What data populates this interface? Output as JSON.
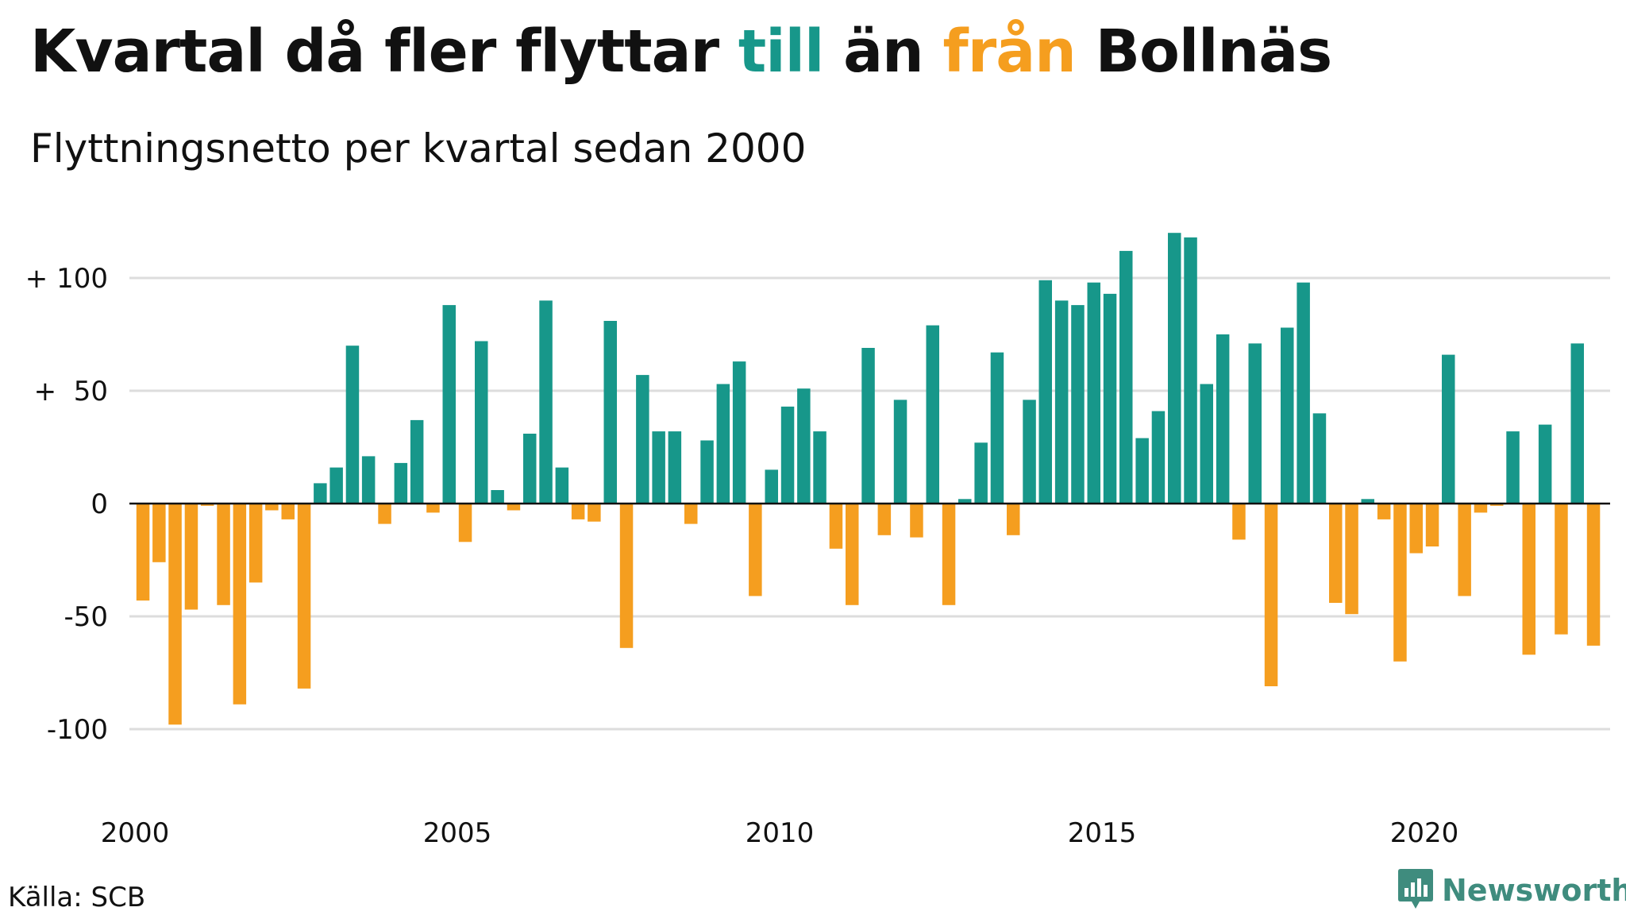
{
  "header": {
    "title_part1": "Kvartal då fler flyttar ",
    "title_till": "till",
    "title_part2": " än ",
    "title_fran": "från",
    "title_part3": " Bollnäs",
    "subtitle": "Flyttningsnetto per kvartal sedan 2000"
  },
  "footer": {
    "source": "Källa: SCB",
    "logo_text": "Newsworthy",
    "logo_icon": "newsworthy-logo-icon"
  },
  "colors": {
    "positive": "#17978a",
    "negative": "#f59e1f",
    "grid": "#dddddd",
    "baseline": "#111111",
    "logo": "#3f8c7e"
  },
  "chart_data": {
    "type": "bar",
    "title": "Kvartal då fler flyttar till än från Bollnäs",
    "subtitle": "Flyttningsnetto per kvartal sedan 2000",
    "start_year": 2000,
    "quarters_per_year": 4,
    "ylim": [
      -123,
      123
    ],
    "yticks": [
      {
        "value": 100,
        "label": "+ 100"
      },
      {
        "value": 50,
        "label": "+  50"
      },
      {
        "value": 0,
        "label": "0"
      },
      {
        "value": -50,
        "label": "-50"
      },
      {
        "value": -100,
        "label": "-100"
      }
    ],
    "xticks": [
      {
        "year": 2000,
        "label": "2000"
      },
      {
        "year": 2005,
        "label": "2005"
      },
      {
        "year": 2010,
        "label": "2010"
      },
      {
        "year": 2015,
        "label": "2015"
      },
      {
        "year": 2020,
        "label": "2020"
      }
    ],
    "grid": true,
    "values": [
      -43,
      -26,
      -98,
      -47,
      -1,
      -45,
      -89,
      -35,
      -3,
      -7,
      -82,
      9,
      16,
      70,
      21,
      -9,
      18,
      37,
      -4,
      88,
      -17,
      72,
      6,
      -3,
      31,
      90,
      16,
      -7,
      -8,
      81,
      -64,
      57,
      32,
      32,
      -9,
      28,
      53,
      63,
      -41,
      15,
      43,
      51,
      32,
      -20,
      -45,
      69,
      -14,
      46,
      -15,
      79,
      -45,
      2,
      27,
      67,
      -14,
      46,
      99,
      90,
      88,
      98,
      93,
      112,
      29,
      41,
      120,
      118,
      53,
      75,
      -16,
      71,
      -81,
      78,
      98,
      40,
      -44,
      -49,
      2,
      -7,
      -70,
      -22,
      -19,
      66,
      -41,
      -4,
      -1,
      32,
      -67,
      35,
      -58,
      71,
      -63
    ]
  }
}
